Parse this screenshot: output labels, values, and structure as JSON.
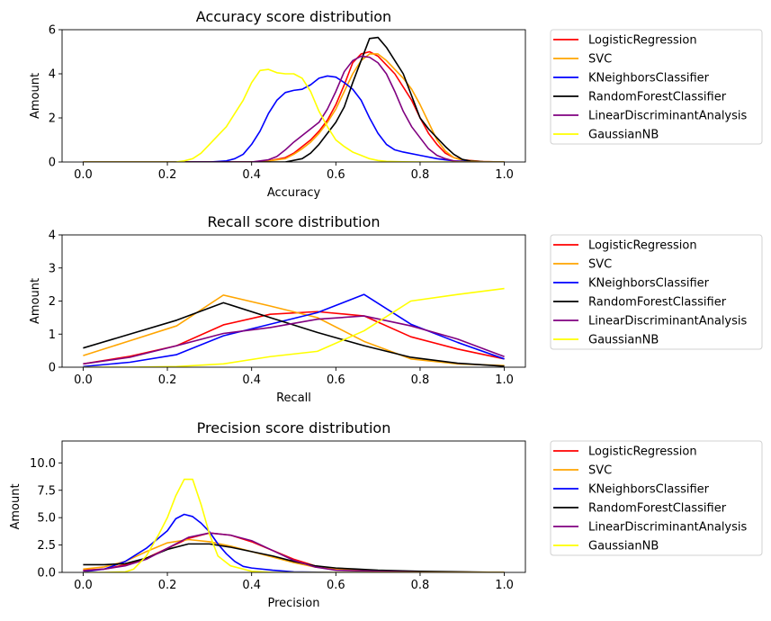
{
  "colors": {
    "LogisticRegression": "#ff0000",
    "SVC": "#ffa500",
    "KNeighborsClassifier": "#0000ff",
    "RandomForestClassifier": "#000000",
    "LinearDiscriminantAnalysis": "#800080",
    "GaussianNB": "#ffff00"
  },
  "chart_data": [
    {
      "type": "line",
      "title": "Accuracy score distribution",
      "xlabel": "Accuracy",
      "ylabel": "Amount",
      "xlim": [
        -0.05,
        1.05
      ],
      "ylim": [
        0,
        6
      ],
      "xticks": [
        0.0,
        0.2,
        0.4,
        0.6,
        0.8,
        1.0
      ],
      "xtick_labels": [
        "0.0",
        "0.2",
        "0.4",
        "0.6",
        "0.8",
        "1.0"
      ],
      "yticks": [
        0,
        2,
        4,
        6
      ],
      "ytick_labels": [
        "0",
        "2",
        "4",
        "6"
      ],
      "legend": "outside-right",
      "series": [
        {
          "name": "LogisticRegression",
          "x": [
            0,
            0.4,
            0.44,
            0.48,
            0.5,
            0.52,
            0.54,
            0.56,
            0.58,
            0.6,
            0.62,
            0.64,
            0.66,
            0.68,
            0.7,
            0.72,
            0.74,
            0.76,
            0.78,
            0.8,
            0.82,
            0.84,
            0.86,
            0.88,
            0.9,
            0.95,
            1.0
          ],
          "y": [
            0,
            0,
            0.05,
            0.2,
            0.4,
            0.7,
            1.0,
            1.4,
            1.9,
            2.6,
            3.5,
            4.5,
            4.9,
            5.0,
            4.8,
            4.4,
            4.0,
            3.4,
            2.8,
            2.0,
            1.3,
            0.8,
            0.4,
            0.2,
            0.1,
            0.02,
            0
          ]
        },
        {
          "name": "SVC",
          "x": [
            0,
            0.4,
            0.44,
            0.48,
            0.5,
            0.52,
            0.54,
            0.56,
            0.58,
            0.6,
            0.62,
            0.64,
            0.66,
            0.68,
            0.7,
            0.72,
            0.74,
            0.76,
            0.78,
            0.8,
            0.82,
            0.84,
            0.86,
            0.88,
            0.9,
            0.95,
            1.0
          ],
          "y": [
            0,
            0,
            0.05,
            0.15,
            0.35,
            0.6,
            0.9,
            1.3,
            1.8,
            2.4,
            3.2,
            4.0,
            4.6,
            4.9,
            4.9,
            4.6,
            4.2,
            3.8,
            3.3,
            2.6,
            1.8,
            1.0,
            0.5,
            0.2,
            0.08,
            0.02,
            0
          ]
        },
        {
          "name": "KNeighborsClassifier",
          "x": [
            0,
            0.3,
            0.34,
            0.36,
            0.38,
            0.4,
            0.42,
            0.44,
            0.46,
            0.48,
            0.5,
            0.52,
            0.54,
            0.56,
            0.58,
            0.6,
            0.62,
            0.64,
            0.66,
            0.68,
            0.7,
            0.72,
            0.74,
            0.76,
            0.8,
            0.84,
            0.88,
            0.92,
            1.0
          ],
          "y": [
            0,
            0,
            0.05,
            0.15,
            0.35,
            0.8,
            1.4,
            2.2,
            2.8,
            3.15,
            3.25,
            3.3,
            3.5,
            3.8,
            3.9,
            3.85,
            3.6,
            3.3,
            2.8,
            2.0,
            1.3,
            0.8,
            0.55,
            0.45,
            0.3,
            0.15,
            0.05,
            0.02,
            0
          ]
        },
        {
          "name": "RandomForestClassifier",
          "x": [
            0,
            0.48,
            0.52,
            0.54,
            0.56,
            0.58,
            0.6,
            0.62,
            0.64,
            0.66,
            0.68,
            0.7,
            0.72,
            0.74,
            0.76,
            0.78,
            0.8,
            0.82,
            0.84,
            0.86,
            0.88,
            0.9,
            0.92,
            0.95,
            1.0
          ],
          "y": [
            0,
            0,
            0.15,
            0.4,
            0.8,
            1.3,
            1.8,
            2.5,
            3.6,
            4.6,
            5.6,
            5.65,
            5.2,
            4.6,
            4.0,
            3.0,
            2.0,
            1.5,
            1.1,
            0.7,
            0.35,
            0.12,
            0.04,
            0.01,
            0
          ]
        },
        {
          "name": "LinearDiscriminantAnalysis",
          "x": [
            0,
            0.4,
            0.44,
            0.46,
            0.48,
            0.5,
            0.52,
            0.54,
            0.56,
            0.58,
            0.6,
            0.62,
            0.64,
            0.66,
            0.68,
            0.7,
            0.72,
            0.74,
            0.76,
            0.78,
            0.8,
            0.82,
            0.84,
            0.86,
            0.88,
            0.9,
            1.0
          ],
          "y": [
            0,
            0,
            0.1,
            0.25,
            0.55,
            0.9,
            1.2,
            1.5,
            1.8,
            2.4,
            3.2,
            4.1,
            4.6,
            4.8,
            4.75,
            4.5,
            4.0,
            3.2,
            2.3,
            1.6,
            1.1,
            0.6,
            0.3,
            0.15,
            0.05,
            0.01,
            0
          ]
        },
        {
          "name": "GaussianNB",
          "x": [
            0,
            0.22,
            0.24,
            0.26,
            0.28,
            0.3,
            0.32,
            0.34,
            0.36,
            0.38,
            0.4,
            0.42,
            0.44,
            0.46,
            0.48,
            0.5,
            0.52,
            0.54,
            0.56,
            0.58,
            0.6,
            0.62,
            0.64,
            0.66,
            0.68,
            0.7,
            0.72,
            0.76,
            0.8,
            1.0
          ],
          "y": [
            0,
            0,
            0.05,
            0.15,
            0.4,
            0.8,
            1.2,
            1.6,
            2.2,
            2.8,
            3.6,
            4.15,
            4.2,
            4.05,
            4.0,
            4.0,
            3.8,
            3.2,
            2.3,
            1.6,
            1.0,
            0.7,
            0.45,
            0.3,
            0.15,
            0.07,
            0.03,
            0.01,
            0,
            0
          ]
        }
      ]
    },
    {
      "type": "line",
      "title": "Recall score distribution",
      "xlabel": "Recall",
      "ylabel": "Amount",
      "xlim": [
        -0.05,
        1.05
      ],
      "ylim": [
        0,
        4
      ],
      "xticks": [
        0.0,
        0.2,
        0.4,
        0.6,
        0.8,
        1.0
      ],
      "xtick_labels": [
        "0.0",
        "0.2",
        "0.4",
        "0.6",
        "0.8",
        "1.0"
      ],
      "yticks": [
        0,
        1,
        2,
        3,
        4
      ],
      "ytick_labels": [
        "0",
        "1",
        "2",
        "3",
        "4"
      ],
      "legend": "outside-right",
      "series": [
        {
          "name": "LogisticRegression",
          "x": [
            0.0,
            0.111,
            0.222,
            0.333,
            0.444,
            0.556,
            0.667,
            0.778,
            0.889,
            1.0
          ],
          "y": [
            0.1,
            0.33,
            0.65,
            1.28,
            1.6,
            1.68,
            1.55,
            0.92,
            0.55,
            0.25
          ]
        },
        {
          "name": "SVC",
          "x": [
            0.0,
            0.111,
            0.222,
            0.333,
            0.444,
            0.556,
            0.667,
            0.778,
            0.889,
            1.0
          ],
          "y": [
            0.35,
            0.8,
            1.25,
            2.18,
            1.85,
            1.5,
            0.78,
            0.25,
            0.1,
            0.05
          ]
        },
        {
          "name": "KNeighborsClassifier",
          "x": [
            0.0,
            0.111,
            0.222,
            0.333,
            0.444,
            0.556,
            0.667,
            0.778,
            0.889,
            1.0
          ],
          "y": [
            0.02,
            0.15,
            0.38,
            0.95,
            1.3,
            1.65,
            2.2,
            1.3,
            0.75,
            0.25
          ]
        },
        {
          "name": "RandomForestClassifier",
          "x": [
            0.0,
            0.111,
            0.222,
            0.333,
            0.444,
            0.556,
            0.667,
            0.778,
            0.889,
            1.0
          ],
          "y": [
            0.58,
            1.0,
            1.42,
            1.95,
            1.5,
            1.05,
            0.65,
            0.3,
            0.12,
            0.03
          ]
        },
        {
          "name": "LinearDiscriminantAnalysis",
          "x": [
            0.0,
            0.111,
            0.222,
            0.333,
            0.444,
            0.556,
            0.667,
            0.778,
            0.889,
            1.0
          ],
          "y": [
            0.1,
            0.3,
            0.65,
            1.02,
            1.2,
            1.45,
            1.55,
            1.25,
            0.85,
            0.32
          ]
        },
        {
          "name": "GaussianNB",
          "x": [
            0.0,
            0.111,
            0.222,
            0.333,
            0.444,
            0.556,
            0.667,
            0.778,
            0.889,
            1.0
          ],
          "y": [
            0.0,
            0.0,
            0.02,
            0.1,
            0.32,
            0.48,
            1.1,
            2.0,
            2.2,
            2.38
          ]
        }
      ]
    },
    {
      "type": "line",
      "title": "Precision score distribution",
      "xlabel": "Precision",
      "ylabel": "Amount",
      "xlim": [
        -0.05,
        1.05
      ],
      "ylim": [
        0,
        12
      ],
      "xticks": [
        0.0,
        0.2,
        0.4,
        0.6,
        0.8,
        1.0
      ],
      "xtick_labels": [
        "0.0",
        "0.2",
        "0.4",
        "0.6",
        "0.8",
        "1.0"
      ],
      "yticks": [
        0,
        2.5,
        5,
        7.5,
        10
      ],
      "ytick_labels": [
        "0.0",
        "2.5",
        "5.0",
        "7.5",
        "10.0"
      ],
      "legend": "outside-right",
      "series": [
        {
          "name": "LogisticRegression",
          "x": [
            0.0,
            0.05,
            0.1,
            0.15,
            0.2,
            0.25,
            0.3,
            0.35,
            0.4,
            0.45,
            0.5,
            0.55,
            0.6,
            0.7,
            0.8,
            1.0
          ],
          "y": [
            0.2,
            0.3,
            0.7,
            1.3,
            2.2,
            3.1,
            3.6,
            3.4,
            2.8,
            2.0,
            1.2,
            0.6,
            0.3,
            0.15,
            0.05,
            0.0
          ]
        },
        {
          "name": "SVC",
          "x": [
            0.0,
            0.05,
            0.1,
            0.15,
            0.2,
            0.25,
            0.3,
            0.35,
            0.4,
            0.45,
            0.5,
            0.55,
            0.6,
            0.7,
            0.8,
            1.0
          ],
          "y": [
            0.3,
            0.5,
            1.0,
            1.9,
            2.7,
            3.0,
            2.8,
            2.4,
            1.9,
            1.4,
            0.9,
            0.5,
            0.3,
            0.1,
            0.05,
            0.0
          ]
        },
        {
          "name": "KNeighborsClassifier",
          "x": [
            0.0,
            0.05,
            0.1,
            0.15,
            0.2,
            0.22,
            0.24,
            0.26,
            0.28,
            0.3,
            0.32,
            0.34,
            0.36,
            0.38,
            0.4,
            0.45,
            0.5,
            0.6,
            1.0
          ],
          "y": [
            0.05,
            0.3,
            1.0,
            2.2,
            3.8,
            4.9,
            5.3,
            5.1,
            4.5,
            3.7,
            2.6,
            1.7,
            1.0,
            0.55,
            0.4,
            0.2,
            0.05,
            0.0,
            0.0
          ]
        },
        {
          "name": "RandomForestClassifier",
          "x": [
            0.0,
            0.05,
            0.1,
            0.15,
            0.2,
            0.25,
            0.3,
            0.35,
            0.4,
            0.45,
            0.5,
            0.55,
            0.6,
            0.65,
            0.7,
            0.8,
            1.0
          ],
          "y": [
            0.7,
            0.7,
            0.8,
            1.3,
            2.1,
            2.6,
            2.6,
            2.3,
            1.9,
            1.5,
            1.0,
            0.6,
            0.4,
            0.3,
            0.2,
            0.1,
            0.0
          ]
        },
        {
          "name": "LinearDiscriminantAnalysis",
          "x": [
            0.0,
            0.05,
            0.1,
            0.15,
            0.2,
            0.25,
            0.3,
            0.35,
            0.4,
            0.45,
            0.5,
            0.55,
            0.6,
            0.7,
            0.8,
            1.0
          ],
          "y": [
            0.15,
            0.3,
            0.6,
            1.2,
            2.2,
            3.2,
            3.6,
            3.4,
            2.9,
            2.0,
            1.1,
            0.5,
            0.2,
            0.1,
            0.02,
            0.0
          ]
        },
        {
          "name": "GaussianNB",
          "x": [
            0.0,
            0.05,
            0.1,
            0.12,
            0.15,
            0.18,
            0.2,
            0.22,
            0.24,
            0.26,
            0.28,
            0.3,
            0.32,
            0.35,
            0.4,
            0.45,
            0.5,
            1.0
          ],
          "y": [
            0.0,
            0.0,
            0.05,
            0.3,
            1.5,
            3.5,
            5.0,
            7.0,
            8.5,
            8.5,
            6.2,
            3.5,
            1.5,
            0.6,
            0.1,
            0.0,
            0.0,
            0.0
          ]
        }
      ]
    }
  ]
}
